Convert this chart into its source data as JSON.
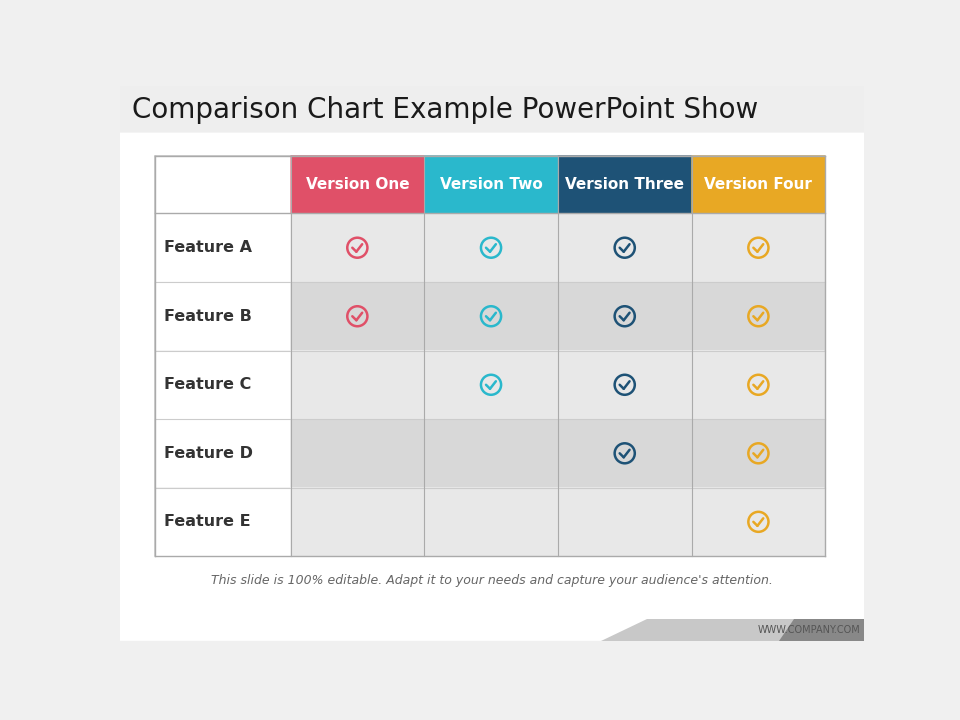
{
  "title": "Comparison Chart Example PowerPoint Show",
  "title_fontsize": 20,
  "title_color": "#1a1a1a",
  "bg_color": "#f0f0f0",
  "slide_bg": "#ffffff",
  "table_bg": "#ffffff",
  "subtitle": "This slide is 100% editable. Adapt it to your needs and capture your audience's attention.",
  "footer": "WWW.COMPANY.COM",
  "versions": [
    "Version One",
    "Version Two",
    "Version Three",
    "Version Four"
  ],
  "version_colors": [
    "#e05068",
    "#2ab8cc",
    "#1e5276",
    "#e8a824"
  ],
  "features": [
    "Feature A",
    "Feature B",
    "Feature C",
    "Feature D",
    "Feature E"
  ],
  "checks": [
    [
      true,
      true,
      true,
      true
    ],
    [
      true,
      true,
      true,
      true
    ],
    [
      false,
      true,
      true,
      true
    ],
    [
      false,
      false,
      true,
      true
    ],
    [
      false,
      false,
      false,
      true
    ]
  ],
  "check_colors": [
    "#e05068",
    "#2ab8cc",
    "#1e5276",
    "#e8a824"
  ],
  "row_colors_light": "#e8e8e8",
  "row_colors_dark": "#d8d8d8",
  "header_text_color": "#ffffff",
  "feature_text_color": "#333333",
  "title_bar_color": "#e8e8e8",
  "footer_bar1": "#c0c0c0",
  "footer_bar2": "#888888"
}
